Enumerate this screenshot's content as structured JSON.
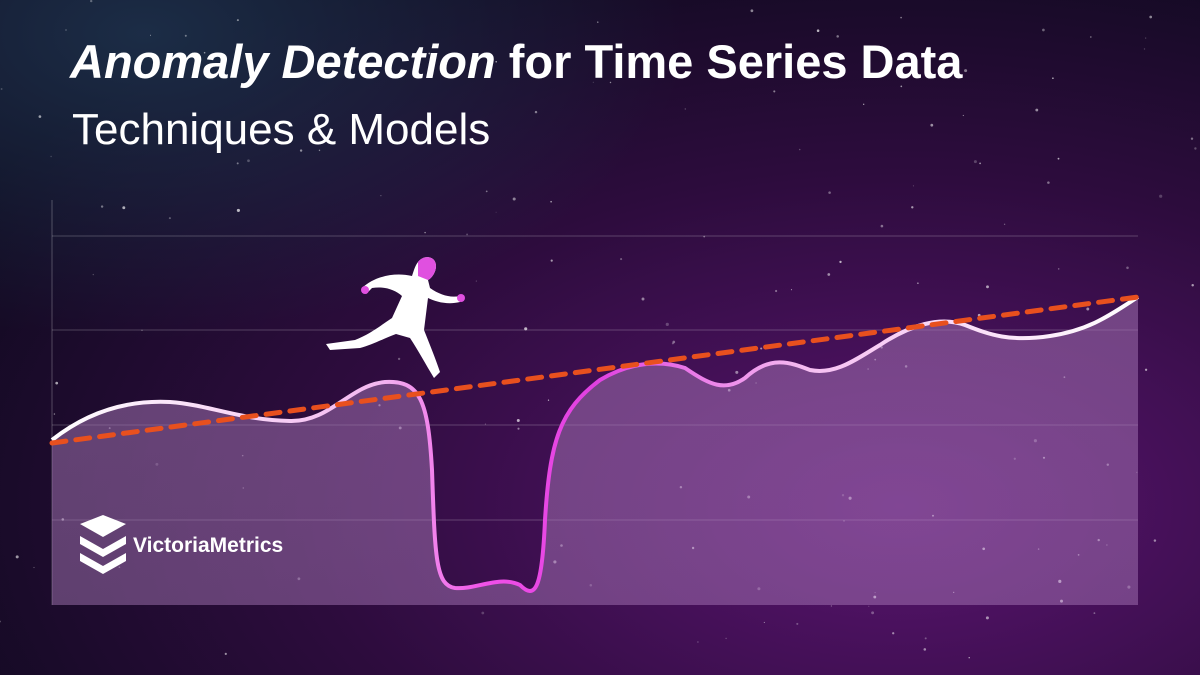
{
  "header": {
    "title_emphasis": "Anomaly Detection",
    "title_rest": "for Time Series Data",
    "subtitle": "Techniques & Models"
  },
  "logo": {
    "text": "VictoriaMetrics"
  }
}
